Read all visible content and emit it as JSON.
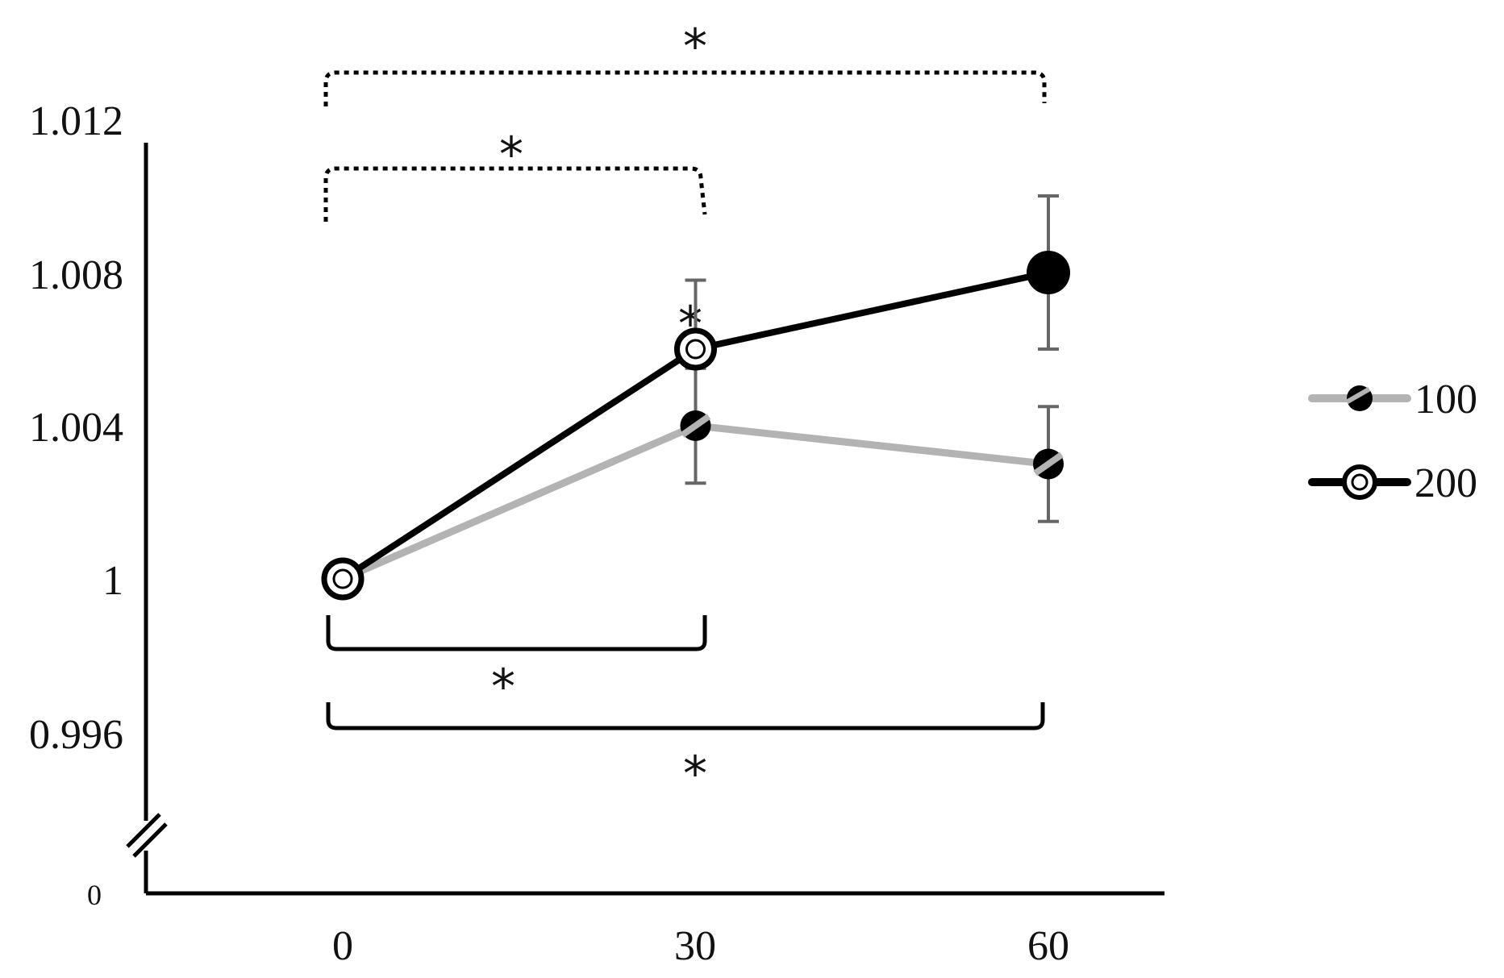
{
  "chart_data": {
    "type": "line",
    "title": "",
    "xlabel": "",
    "ylabel": "",
    "x": [
      0,
      30,
      60
    ],
    "x_tick_labels": [
      "0",
      "30",
      "60"
    ],
    "y_tick_labels": [
      "1.012",
      "1.008",
      "1.004",
      "1",
      "0.996",
      "0"
    ],
    "ylim": [
      0.996,
      1.012
    ],
    "axis_break": true,
    "grid": false,
    "legend_position": "right",
    "series": [
      {
        "name": "100",
        "color": "#b3b3b3",
        "values": [
          1.0,
          1.004,
          1.003
        ],
        "error": [
          0,
          0.0015,
          0.0015
        ],
        "marker": "half-filled-circle"
      },
      {
        "name": "200",
        "color": "#000000",
        "values": [
          1.0,
          1.006,
          1.008
        ],
        "error": [
          0,
          0.0018,
          0.002
        ],
        "marker": "circle"
      }
    ],
    "annotations": [
      {
        "text": "*",
        "type": "bracket-dotted",
        "from_x": 0,
        "to_x": 60,
        "position": "above"
      },
      {
        "text": "*",
        "type": "bracket-dotted",
        "from_x": 0,
        "to_x": 30,
        "position": "above"
      },
      {
        "text": "*",
        "type": "bracket-solid",
        "from_x": 0,
        "to_x": 30,
        "position": "below"
      },
      {
        "text": "*",
        "type": "bracket-solid",
        "from_x": 0,
        "to_x": 60,
        "position": "below"
      },
      {
        "text": "*",
        "type": "point",
        "x": 30,
        "series": "200"
      }
    ]
  }
}
